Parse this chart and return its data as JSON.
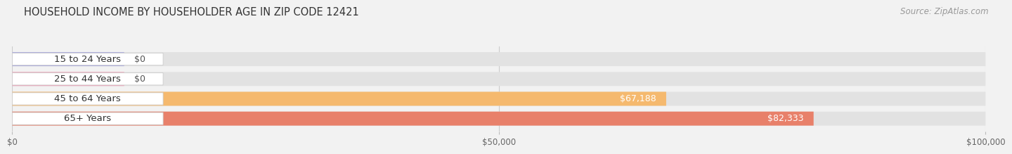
{
  "title": "HOUSEHOLD INCOME BY HOUSEHOLDER AGE IN ZIP CODE 12421",
  "source": "Source: ZipAtlas.com",
  "categories": [
    "15 to 24 Years",
    "25 to 44 Years",
    "45 to 64 Years",
    "65+ Years"
  ],
  "values": [
    0,
    0,
    67188,
    82333
  ],
  "bar_colors": [
    "#aaaadd",
    "#f0a0b8",
    "#f5b96e",
    "#e8806a"
  ],
  "value_labels": [
    "$0",
    "$0",
    "$67,188",
    "$82,333"
  ],
  "xlim": [
    0,
    100000
  ],
  "xticks": [
    0,
    50000,
    100000
  ],
  "xtick_labels": [
    "$0",
    "$50,000",
    "$100,000"
  ],
  "bar_height": 0.52,
  "background_color": "#f2f2f2",
  "bg_bar_color": "#e2e2e2",
  "title_fontsize": 10.5,
  "source_fontsize": 8.5,
  "label_fontsize": 9.5,
  "value_fontsize": 9
}
